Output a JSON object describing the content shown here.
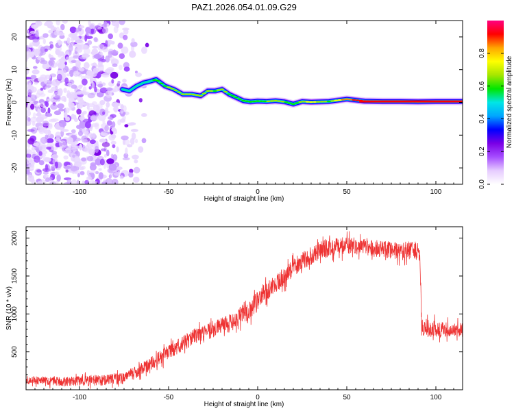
{
  "title": "PAZ1.2026.054.01.09.G29",
  "chart_data": [
    {
      "type": "heatmap",
      "xlabel": "Height of straight line (km)",
      "ylabel": "Frequency (Hz)",
      "xlim": [
        -130,
        115
      ],
      "ylim": [
        -25,
        25
      ],
      "xticks": [
        -100,
        -50,
        0,
        50,
        100
      ],
      "yticks": [
        -20,
        -10,
        0,
        10,
        20
      ],
      "noise_region_x": [
        -130,
        -62
      ],
      "ridge": {
        "x": [
          -76,
          -72,
          -68,
          -64,
          -60,
          -57,
          -52,
          -47,
          -42,
          -37,
          -32,
          -28,
          -24,
          -20,
          -16,
          -12,
          -8,
          -4,
          0,
          5,
          10,
          15,
          20,
          25,
          30,
          40,
          50,
          60,
          70,
          80,
          90,
          100,
          115
        ],
        "freq": [
          4,
          3.5,
          5,
          6,
          6.5,
          7,
          5,
          4,
          2.5,
          2.5,
          2,
          3.5,
          3.5,
          4,
          2.5,
          1.5,
          0.5,
          0.2,
          0.4,
          0.3,
          0.5,
          0.2,
          -0.5,
          0.3,
          0.1,
          0.3,
          1,
          0.4,
          0.3,
          0.3,
          0.2,
          0.3,
          0.3
        ],
        "amplitude": [
          0.2,
          0.35,
          0.35,
          0.3,
          0.4,
          0.55,
          0.55,
          0.6,
          0.65,
          0.6,
          0.6,
          0.6,
          0.55,
          0.6,
          0.55,
          0.45,
          0.55,
          0.55,
          0.5,
          0.55,
          0.6,
          0.55,
          0.5,
          0.6,
          0.7,
          0.55,
          0.85,
          1,
          1,
          0.95,
          0.9,
          0.9,
          0.85
        ]
      }
    },
    {
      "type": "line",
      "xlabel": "Height of straight line (km)",
      "ylabel": "SNR (10 * v/v)",
      "xlim": [
        -130,
        115
      ],
      "ylim": [
        0,
        2150
      ],
      "xticks": [
        -100,
        -50,
        0,
        50,
        100
      ],
      "yticks": [
        500,
        1000,
        1500,
        2000
      ],
      "color": "#ee3333",
      "trend": {
        "x": [
          -130,
          -110,
          -90,
          -75,
          -65,
          -55,
          -45,
          -35,
          -25,
          -15,
          -5,
          5,
          15,
          25,
          35,
          45,
          55,
          65,
          75,
          85,
          91,
          92,
          100,
          110,
          115
        ],
        "y": [
          130,
          110,
          120,
          150,
          270,
          420,
          570,
          710,
          800,
          880,
          1050,
          1300,
          1500,
          1700,
          1840,
          1900,
          1900,
          1860,
          1840,
          1840,
          1820,
          830,
          800,
          800,
          800
        ]
      },
      "noise_amplitude": {
        "x": [
          -130,
          -60,
          0,
          60,
          92,
          115
        ],
        "y": [
          50,
          90,
          130,
          110,
          120,
          80
        ]
      }
    }
  ],
  "colorbar": {
    "label": "Normalized spectral amplitude",
    "ticks": [
      "0.0",
      "0.2",
      "0.4",
      "0.6",
      "0.8"
    ],
    "tick_values": [
      0,
      0.2,
      0.4,
      0.6,
      0.8
    ],
    "range": [
      0,
      1
    ],
    "colors": [
      "#ffffff",
      "#e6ccff",
      "#a64dff",
      "#7a00e6",
      "#0000ff",
      "#00a6ff",
      "#00e6e6",
      "#00e600",
      "#a6e600",
      "#ffff00",
      "#ffa600",
      "#ff0000",
      "#ff0080"
    ]
  }
}
